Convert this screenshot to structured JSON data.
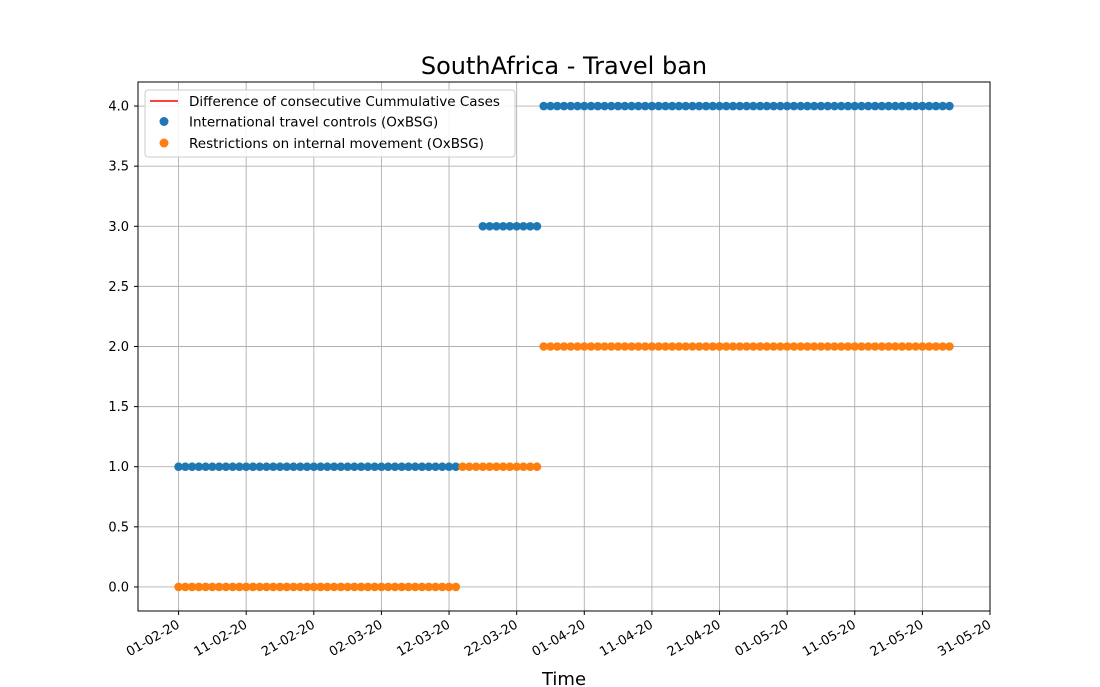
{
  "chart_data": {
    "type": "scatter",
    "title": "SouthAfrica - Travel ban",
    "xlabel": "Time",
    "ylabel": "",
    "x_range": [
      "2020-01-26",
      "2020-05-31"
    ],
    "ylim": [
      -0.2,
      4.2
    ],
    "y_ticks": [
      "0.0",
      "0.5",
      "1.0",
      "1.5",
      "2.0",
      "2.5",
      "3.0",
      "3.5",
      "4.0"
    ],
    "x_ticks": [
      "01-02-20",
      "11-02-20",
      "21-02-20",
      "02-03-20",
      "12-03-20",
      "22-03-20",
      "01-04-20",
      "11-04-20",
      "21-04-20",
      "01-05-20",
      "11-05-20",
      "21-05-20",
      "31-05-20"
    ],
    "x_tick_rotation": "30 degrees",
    "grid": true,
    "legend_position": "top-left",
    "legend": [
      {
        "label": "Difference of consecutive Cummulative Cases",
        "marker": "line",
        "color": "#ff0000"
      },
      {
        "label": "International travel controls (OxBSG)",
        "marker": "circle",
        "color": "#1f77b4"
      },
      {
        "label": "Restrictions on internal movement (OxBSG)",
        "marker": "circle",
        "color": "#ff7f0e"
      }
    ],
    "series": [
      {
        "name": "Difference of consecutive Cummulative Cases",
        "color": "#ff0000",
        "kind": "line",
        "points": []
      },
      {
        "name": "International travel controls (OxBSG)",
        "color": "#1f77b4",
        "kind": "scatter",
        "segments": [
          {
            "start": "2020-02-01",
            "end": "2020-03-13",
            "value": 1.0
          },
          {
            "start": "2020-03-17",
            "end": "2020-03-25",
            "value": 3.0
          },
          {
            "start": "2020-03-26",
            "end": "2020-05-25",
            "value": 4.0
          }
        ]
      },
      {
        "name": "Restrictions on internal movement (OxBSG)",
        "color": "#ff7f0e",
        "kind": "scatter",
        "segments": [
          {
            "start": "2020-02-01",
            "end": "2020-03-13",
            "value": 0.0
          },
          {
            "start": "2020-03-14",
            "end": "2020-03-25",
            "value": 1.0
          },
          {
            "start": "2020-03-26",
            "end": "2020-05-25",
            "value": 2.0
          }
        ]
      }
    ]
  }
}
